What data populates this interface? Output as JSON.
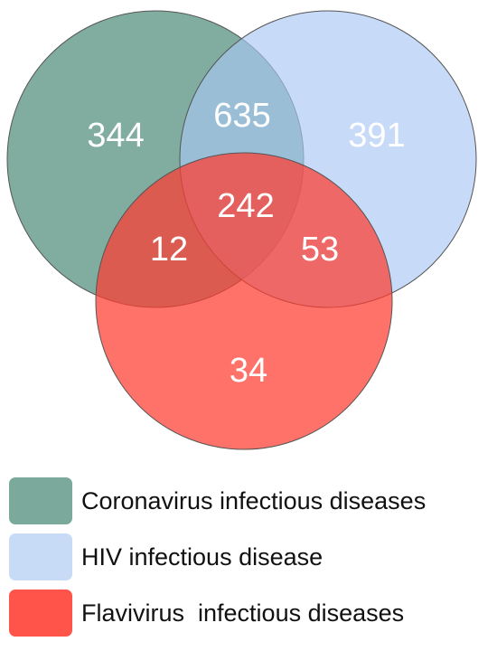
{
  "sets": [
    {
      "label": "Coronavirus infectious diseases",
      "color": "#4a8a78"
    },
    {
      "label": "HIV infectious disease",
      "color": "#a9c8f4"
    },
    {
      "label": "Flavivirus  infectious diseases",
      "color": "#ff3b30"
    }
  ],
  "regions": {
    "coronavirus_only": "344",
    "hiv_only": "391",
    "flavivirus_only": "34",
    "coronavirus_hiv": "635",
    "coronavirus_flavivirus": "12",
    "hiv_flavivirus": "53",
    "all_three": "242"
  }
}
